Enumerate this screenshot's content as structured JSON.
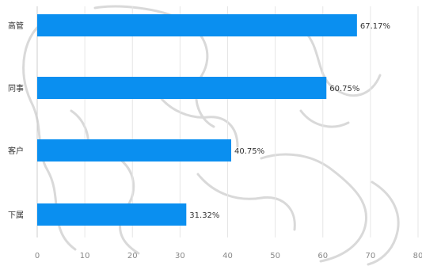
{
  "chart_data": {
    "type": "bar",
    "orientation": "horizontal",
    "title": "",
    "xlabel": "",
    "ylabel": "",
    "categories": [
      "高管",
      "同事",
      "客户",
      "下属"
    ],
    "values": [
      67.17,
      60.75,
      40.75,
      31.32
    ],
    "value_labels": [
      "67.17%",
      "60.75%",
      "40.75%",
      "31.32%"
    ],
    "xlim": [
      0,
      80
    ],
    "ticks": [
      "0",
      "10",
      "20",
      "30",
      "40",
      "50",
      "60",
      "70",
      "80"
    ],
    "bar_color": "#0a8ff0",
    "grid": true,
    "legend": "none"
  }
}
